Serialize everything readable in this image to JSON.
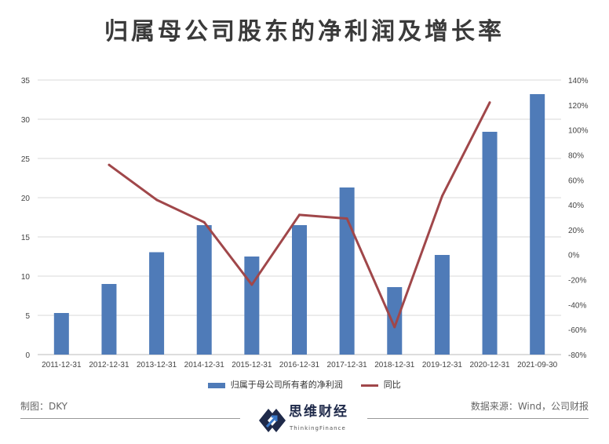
{
  "chart_data": {
    "type": "bar",
    "title": "归属母公司股东的净利润及增长率",
    "categories": [
      "2011-12-31",
      "2012-12-31",
      "2013-12-31",
      "2014-12-31",
      "2015-12-31",
      "2016-12-31",
      "2017-12-31",
      "2018-12-31",
      "2019-12-31",
      "2020-12-31",
      "2021-09-30"
    ],
    "series": [
      {
        "name": "归属于母公司所有者的净利润",
        "type": "bar",
        "axis": "left",
        "color": "#4f7bb8",
        "values": [
          5.3,
          9.0,
          13.05,
          16.5,
          12.5,
          16.5,
          21.3,
          8.6,
          12.7,
          28.4,
          33.2
        ]
      },
      {
        "name": "同比",
        "type": "line",
        "axis": "right",
        "color": "#a0474a",
        "values": [
          null,
          72,
          44,
          26,
          -24,
          32,
          29,
          -58,
          47,
          122,
          null
        ]
      }
    ],
    "ylim": [
      0,
      35
    ],
    "yticks": [
      "0",
      "5",
      "10",
      "15",
      "20",
      "25",
      "30",
      "35"
    ],
    "y2lim": [
      -80,
      140
    ],
    "y2ticks": [
      "-80%",
      "-60%",
      "-40%",
      "-20%",
      "0%",
      "20%",
      "40%",
      "60%",
      "80%",
      "100%",
      "120%",
      "140%"
    ],
    "grid": true,
    "legend": "bottom"
  },
  "footer": {
    "credit": "制图：DKY",
    "source": "数据来源：Wind，公司财报",
    "logo_name": "思维财经",
    "logo_sub": "ThinkingFinance"
  }
}
